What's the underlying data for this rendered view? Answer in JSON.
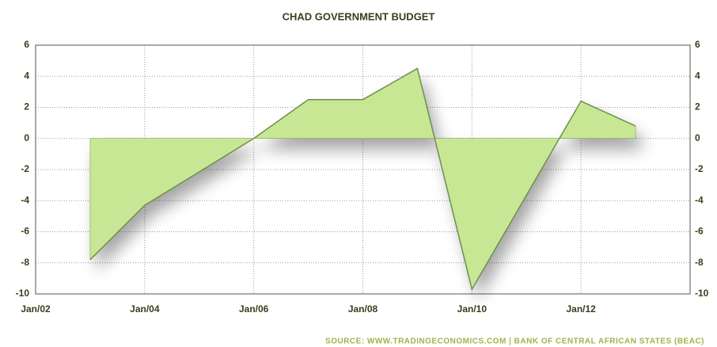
{
  "chart_data": {
    "type": "area",
    "title": "CHAD GOVERNMENT BUDGET",
    "source": "SOURCE: WWW.TRADINGECONOMICS.COM | BANK OF CENTRAL AFRICAN STATES (BEAC)",
    "x": [
      "2003-01",
      "2004-01",
      "2006-01",
      "2007-01",
      "2008-01",
      "2009-01",
      "2010-01",
      "2012-01",
      "2013-01"
    ],
    "values": [
      -7.8,
      -4.3,
      0,
      2.5,
      2.5,
      4.5,
      -9.7,
      2.4,
      0.8
    ],
    "color": "#c8e794",
    "line_color": "#6f8f4e",
    "xlim": [
      "2002-01",
      "2014-01"
    ],
    "xticks": [
      {
        "value": "2002-01",
        "label": "Jan/02"
      },
      {
        "value": "2004-01",
        "label": "Jan/04"
      },
      {
        "value": "2006-01",
        "label": "Jan/06"
      },
      {
        "value": "2008-01",
        "label": "Jan/08"
      },
      {
        "value": "2010-01",
        "label": "Jan/10"
      },
      {
        "value": "2012-01",
        "label": "Jan/12"
      }
    ],
    "ylim": [
      -10,
      6
    ],
    "yticks": [
      -10,
      -8,
      -6,
      -4,
      -2,
      0,
      2,
      4,
      6
    ],
    "grid": true
  }
}
